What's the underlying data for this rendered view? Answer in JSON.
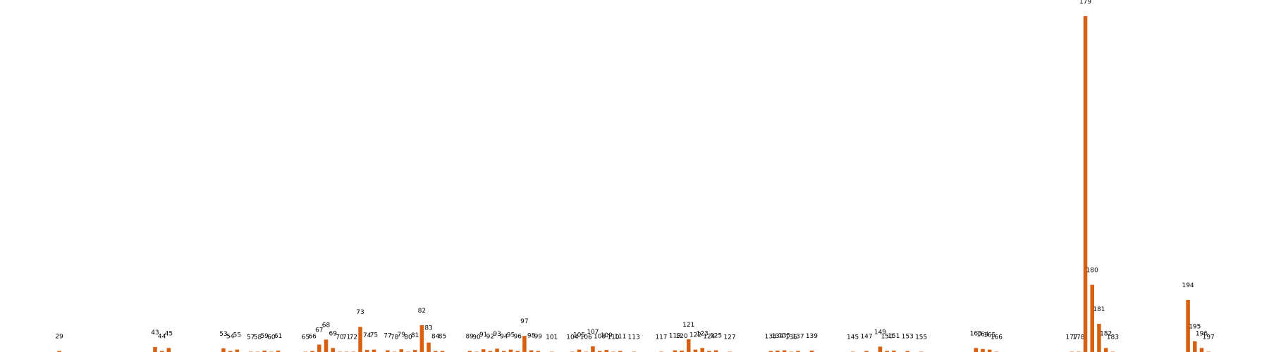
{
  "chart_data": {
    "type": "bar",
    "title": "",
    "xlabel": "",
    "ylabel": "",
    "ylim": [
      0,
      100
    ],
    "grid": false,
    "legend": "none",
    "color": "#d95f0e",
    "points": [
      {
        "x": 29,
        "v": 0.3
      },
      {
        "x": 43,
        "v": 1.5
      },
      {
        "x": 44,
        "v": 0.3
      },
      {
        "x": 45,
        "v": 1.2
      },
      {
        "x": 53,
        "v": 1.1
      },
      {
        "x": 54,
        "v": 0.3
      },
      {
        "x": 55,
        "v": 0.7
      },
      {
        "x": 57,
        "v": 0.1
      },
      {
        "x": 58,
        "v": 0.1
      },
      {
        "x": 59,
        "v": 0.4
      },
      {
        "x": 60,
        "v": 0.1
      },
      {
        "x": 61,
        "v": 0.4
      },
      {
        "x": 65,
        "v": 0.1
      },
      {
        "x": 66,
        "v": 0.3
      },
      {
        "x": 67,
        "v": 2.2
      },
      {
        "x": 68,
        "v": 3.7
      },
      {
        "x": 69,
        "v": 1.2
      },
      {
        "x": 70,
        "v": 0.1
      },
      {
        "x": 71,
        "v": 0.1
      },
      {
        "x": 72,
        "v": 0.1
      },
      {
        "x": 73,
        "v": 7.5
      },
      {
        "x": 74,
        "v": 0.6
      },
      {
        "x": 75,
        "v": 0.7
      },
      {
        "x": 77,
        "v": 0.5
      },
      {
        "x": 78,
        "v": 0.1
      },
      {
        "x": 79,
        "v": 0.8
      },
      {
        "x": 80,
        "v": 0.1
      },
      {
        "x": 81,
        "v": 0.6
      },
      {
        "x": 82,
        "v": 8.0
      },
      {
        "x": 83,
        "v": 2.8
      },
      {
        "x": 84,
        "v": 0.3
      },
      {
        "x": 85,
        "v": 0.3
      },
      {
        "x": 89,
        "v": 0.3
      },
      {
        "x": 90,
        "v": 0.1
      },
      {
        "x": 91,
        "v": 0.8
      },
      {
        "x": 92,
        "v": 0.3
      },
      {
        "x": 93,
        "v": 1.0
      },
      {
        "x": 94,
        "v": 0.3
      },
      {
        "x": 95,
        "v": 0.7
      },
      {
        "x": 96,
        "v": 0.3
      },
      {
        "x": 97,
        "v": 4.8
      },
      {
        "x": 98,
        "v": 0.5
      },
      {
        "x": 99,
        "v": 0.3
      },
      {
        "x": 101,
        "v": 0.1
      },
      {
        "x": 104,
        "v": 0.1
      },
      {
        "x": 105,
        "v": 0.7
      },
      {
        "x": 106,
        "v": 0.1
      },
      {
        "x": 107,
        "v": 1.7
      },
      {
        "x": 108,
        "v": 0.3
      },
      {
        "x": 109,
        "v": 0.6
      },
      {
        "x": 110,
        "v": 0.1
      },
      {
        "x": 111,
        "v": 0.3
      },
      {
        "x": 113,
        "v": 0.1
      },
      {
        "x": 117,
        "v": 0.1
      },
      {
        "x": 119,
        "v": 0.5
      },
      {
        "x": 120,
        "v": 0.4
      },
      {
        "x": 121,
        "v": 3.8
      },
      {
        "x": 122,
        "v": 0.7
      },
      {
        "x": 123,
        "v": 1.2
      },
      {
        "x": 124,
        "v": 0.3
      },
      {
        "x": 125,
        "v": 0.5
      },
      {
        "x": 127,
        "v": 0.1
      },
      {
        "x": 133,
        "v": 0.3
      },
      {
        "x": 134,
        "v": 0.4
      },
      {
        "x": 135,
        "v": 0.5
      },
      {
        "x": 136,
        "v": 0.1
      },
      {
        "x": 137,
        "v": 0.3
      },
      {
        "x": 139,
        "v": 0.4
      },
      {
        "x": 145,
        "v": 0.1
      },
      {
        "x": 147,
        "v": 0.3
      },
      {
        "x": 149,
        "v": 1.6
      },
      {
        "x": 150,
        "v": 0.3
      },
      {
        "x": 151,
        "v": 0.4
      },
      {
        "x": 153,
        "v": 0.3
      },
      {
        "x": 155,
        "v": 0.1
      },
      {
        "x": 163,
        "v": 1.2
      },
      {
        "x": 164,
        "v": 0.9
      },
      {
        "x": 165,
        "v": 0.7
      },
      {
        "x": 166,
        "v": 0.1
      },
      {
        "x": 177,
        "v": 0.1
      },
      {
        "x": 178,
        "v": 0.1
      },
      {
        "x": 179,
        "v": 100
      },
      {
        "x": 180,
        "v": 20.0
      },
      {
        "x": 181,
        "v": 8.4
      },
      {
        "x": 182,
        "v": 1.2
      },
      {
        "x": 183,
        "v": 0.1
      },
      {
        "x": 194,
        "v": 15.5
      },
      {
        "x": 195,
        "v": 3.2
      },
      {
        "x": 196,
        "v": 1.2
      },
      {
        "x": 197,
        "v": 0.1
      }
    ]
  }
}
